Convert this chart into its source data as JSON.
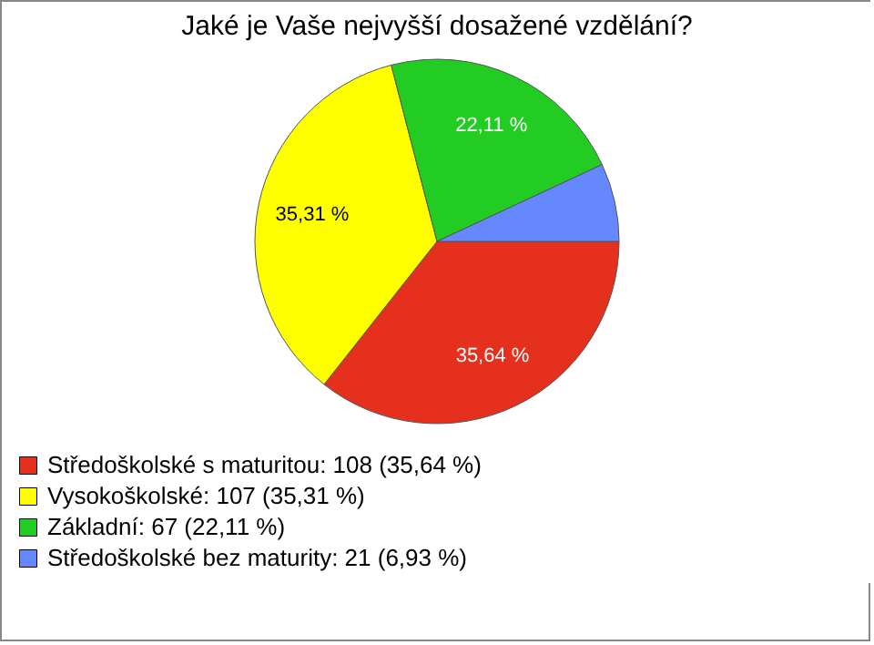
{
  "chart_data": {
    "type": "pie",
    "title": "Jaké je Vaše nejvyšší dosažené vzdělání?",
    "categories": [
      "Středoškolské s maturitou: 108 (35,64 %)",
      "Vysokoškolské: 107 (35,31 %)",
      "Základní: 67 (22,11 %)",
      "Středoškolské bez maturity: 21 (6,93 %)"
    ],
    "values": [
      35.64,
      35.31,
      22.11,
      6.93
    ],
    "value_labels": [
      "35,64 %",
      "35,31 %",
      "22,11 %",
      null
    ],
    "colors": [
      "#e4301c",
      "#ffff00",
      "#22cc22",
      "#6688ff"
    ],
    "legend": "bottom left"
  }
}
